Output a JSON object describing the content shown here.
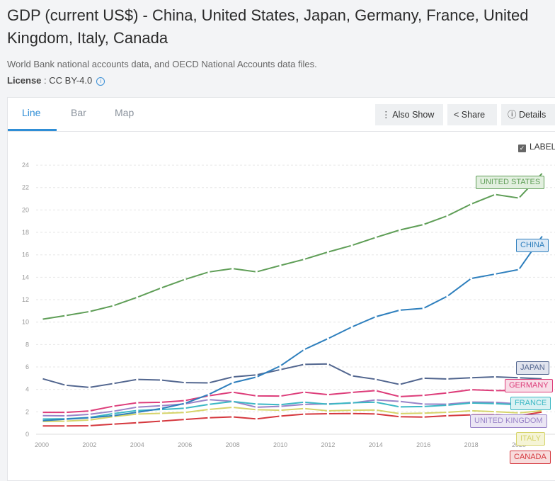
{
  "header": {
    "title": "GDP (current US$) - China, United States, Japan, Germany, France, United Kingdom, Italy, Canada",
    "source": "World Bank national accounts data, and OECD National Accounts data files.",
    "license_label": "License",
    "license_value": " : CC BY-4.0",
    "info_icon": "i"
  },
  "tabs": [
    {
      "label": "Line",
      "active": true
    },
    {
      "label": "Bar"
    },
    {
      "label": "Map"
    }
  ],
  "toolbar": {
    "also_show": "Also Show",
    "share": "Share",
    "details": "Details"
  },
  "label_toggle": {
    "label": "LABEL",
    "checked": true
  },
  "chart_data": {
    "type": "line",
    "x": [
      2000,
      2001,
      2002,
      2003,
      2004,
      2005,
      2006,
      2007,
      2008,
      2009,
      2010,
      2011,
      2012,
      2013,
      2014,
      2015,
      2016,
      2017,
      2018,
      2019,
      2020,
      2021
    ],
    "xticks": [
      "2000",
      "2002",
      "2004",
      "2006",
      "2008",
      "2010",
      "2012",
      "2014",
      "2016",
      "2018",
      "2020"
    ],
    "yticks": [
      "0",
      "2",
      "4",
      "6",
      "8",
      "10",
      "12",
      "14",
      "16",
      "18",
      "20",
      "22",
      "24"
    ],
    "ylim": [
      0,
      24
    ],
    "grid": true,
    "series": [
      {
        "name": "UNITED STATES",
        "color": "#5f9e57",
        "bg": "#e2efdf",
        "values": [
          10.25,
          10.58,
          10.94,
          11.46,
          12.21,
          13.04,
          13.81,
          14.47,
          14.77,
          14.48,
          15.05,
          15.6,
          16.25,
          16.84,
          17.55,
          18.21,
          18.7,
          19.48,
          20.53,
          21.38,
          21.06,
          23.32
        ]
      },
      {
        "name": "CHINA",
        "color": "#2e7fbd",
        "bg": "#dbe9f6",
        "values": [
          1.21,
          1.34,
          1.47,
          1.66,
          1.96,
          2.29,
          2.75,
          3.55,
          4.59,
          5.1,
          6.09,
          7.55,
          8.53,
          9.57,
          10.48,
          11.06,
          11.23,
          12.31,
          13.89,
          14.28,
          14.69,
          17.73
        ]
      },
      {
        "name": "JAPAN",
        "color": "#52668f",
        "bg": "#e1e4ee",
        "values": [
          4.97,
          4.37,
          4.18,
          4.52,
          4.89,
          4.83,
          4.6,
          4.58,
          5.11,
          5.29,
          5.76,
          6.23,
          6.27,
          5.21,
          4.9,
          4.44,
          5.0,
          4.93,
          5.04,
          5.12,
          5.04,
          4.94
        ]
      },
      {
        "name": "GERMANY",
        "color": "#dd3d7a",
        "bg": "#f8dde7",
        "values": [
          1.95,
          1.95,
          2.08,
          2.5,
          2.81,
          2.85,
          3.0,
          3.43,
          3.75,
          3.42,
          3.4,
          3.75,
          3.53,
          3.73,
          3.89,
          3.36,
          3.47,
          3.69,
          3.97,
          3.89,
          3.89,
          4.26
        ]
      },
      {
        "name": "FRANCE",
        "color": "#3bb8c4",
        "bg": "#d9f1f3",
        "values": [
          1.36,
          1.38,
          1.49,
          1.84,
          2.12,
          2.2,
          2.32,
          2.66,
          2.92,
          2.69,
          2.64,
          2.86,
          2.68,
          2.81,
          2.86,
          2.44,
          2.47,
          2.59,
          2.79,
          2.73,
          2.63,
          2.96
        ]
      },
      {
        "name": "UNITED KINGDOM",
        "color": "#9a84c8",
        "bg": "#ebe6f4",
        "values": [
          1.66,
          1.64,
          1.78,
          2.05,
          2.42,
          2.54,
          2.71,
          3.09,
          2.93,
          2.41,
          2.49,
          2.66,
          2.71,
          2.78,
          3.06,
          2.93,
          2.69,
          2.68,
          2.87,
          2.85,
          2.7,
          3.12
        ]
      },
      {
        "name": "ITALY",
        "color": "#d6d46a",
        "bg": "#f5f4d6",
        "values": [
          1.14,
          1.17,
          1.27,
          1.57,
          1.8,
          1.86,
          1.94,
          2.21,
          2.4,
          2.19,
          2.14,
          2.29,
          2.09,
          2.14,
          2.16,
          1.84,
          1.88,
          1.96,
          2.09,
          2.01,
          1.9,
          2.11
        ]
      },
      {
        "name": "CANADA",
        "color": "#d5383e",
        "bg": "#f7dcdc",
        "values": [
          0.74,
          0.74,
          0.76,
          0.9,
          1.03,
          1.17,
          1.32,
          1.47,
          1.55,
          1.37,
          1.62,
          1.79,
          1.83,
          1.85,
          1.81,
          1.56,
          1.53,
          1.65,
          1.73,
          1.74,
          1.65,
          1.99
        ]
      }
    ]
  }
}
